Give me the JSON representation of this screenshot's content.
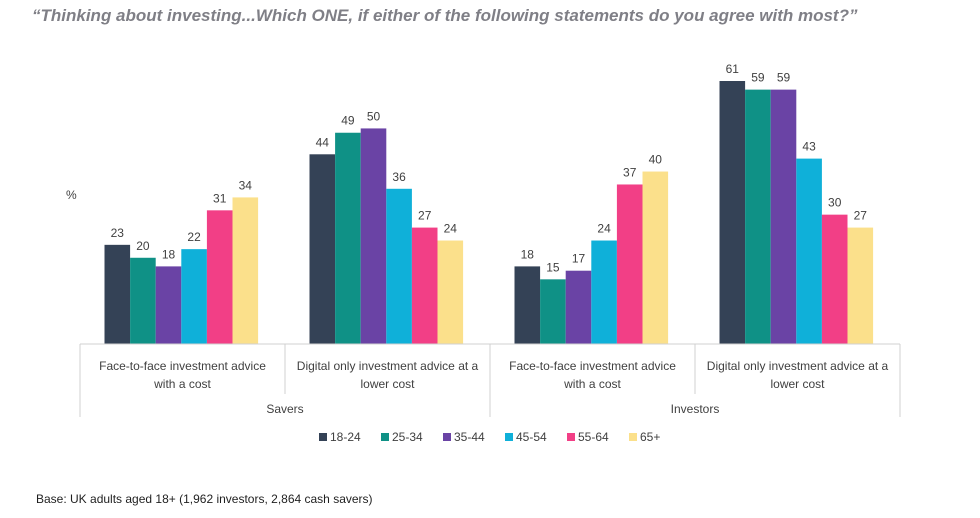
{
  "title": "“Thinking about investing...Which ONE, if either of the following statements do you agree with most?”",
  "footnote": "Base: UK adults aged 18+ (1,962 investors, 2,864 cash savers)",
  "chart_data": {
    "type": "bar",
    "ylabel": "%",
    "ylim": [
      0,
      61
    ],
    "grid": false,
    "legend_position": "bottom",
    "groups": [
      {
        "label": "Savers",
        "categories": [
          "Face-to-face investment advice with a cost",
          "Digital only investment advice at a lower cost"
        ]
      },
      {
        "label": "Investors",
        "categories": [
          "Face-to-face investment advice with a cost",
          "Digital only investment advice at a lower cost"
        ]
      }
    ],
    "category_lines": [
      [
        "Face-to-face investment advice",
        "with a cost"
      ],
      [
        "Digital only investment advice at a",
        "lower cost"
      ],
      [
        "Face-to-face investment advice",
        "with a cost"
      ],
      [
        "Digital only investment advice at a",
        "lower cost"
      ]
    ],
    "series": [
      {
        "name": "18-24",
        "color": "#344256",
        "values": [
          23,
          44,
          18,
          61
        ]
      },
      {
        "name": "25-34",
        "color": "#0f9186",
        "values": [
          20,
          49,
          15,
          59
        ]
      },
      {
        "name": "35-44",
        "color": "#6a43a5",
        "values": [
          18,
          50,
          17,
          59
        ]
      },
      {
        "name": "45-54",
        "color": "#0fb0d9",
        "values": [
          22,
          36,
          24,
          43
        ]
      },
      {
        "name": "55-64",
        "color": "#f23f86",
        "values": [
          31,
          27,
          37,
          30
        ]
      },
      {
        "name": "65+",
        "color": "#fbe08b",
        "values": [
          34,
          24,
          40,
          27
        ]
      }
    ]
  }
}
